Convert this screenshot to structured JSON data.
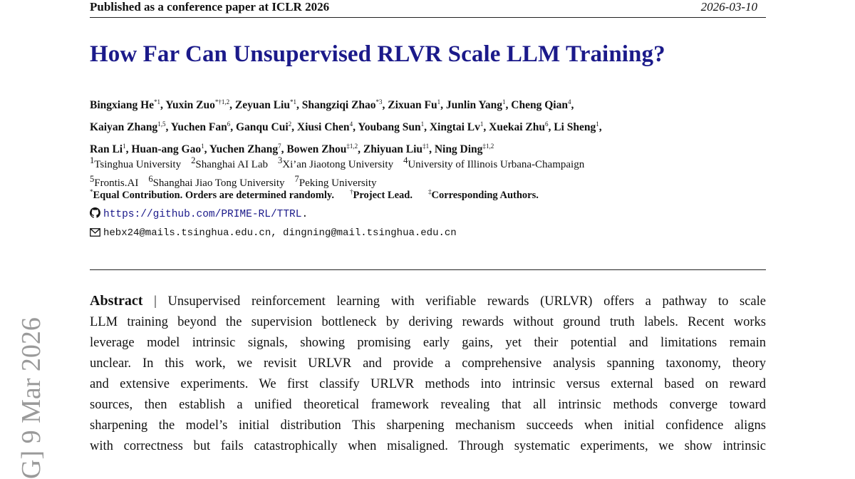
{
  "header": {
    "venue": "Published as a conference paper at ICLR 2026",
    "date": "2026-03-10"
  },
  "title": "How Far Can Unsupervised RLVR Scale LLM Training?",
  "authors": [
    [
      [
        "Bingxiang He",
        "*1"
      ],
      [
        "Yuxin Zuo",
        "*†1,2"
      ],
      [
        "Zeyuan Liu",
        "*1"
      ],
      [
        "Shangziqi Zhao",
        "*3"
      ],
      [
        "Zixuan Fu",
        "1"
      ],
      [
        "Junlin Yang",
        "1"
      ],
      [
        "Cheng Qian",
        "4"
      ]
    ],
    [
      [
        "Kaiyan Zhang",
        "1,5"
      ],
      [
        "Yuchen Fan",
        "6"
      ],
      [
        "Ganqu Cui",
        "2"
      ],
      [
        "Xiusi Chen",
        "4"
      ],
      [
        "Youbang Sun",
        "1"
      ],
      [
        "Xingtai Lv",
        "1"
      ],
      [
        "Xuekai Zhu",
        "6"
      ],
      [
        "Li Sheng",
        "1"
      ]
    ],
    [
      [
        "Ran Li",
        "1"
      ],
      [
        "Huan-ang Gao",
        "1"
      ],
      [
        "Yuchen Zhang",
        "7"
      ],
      [
        "Bowen Zhou",
        "‡1,2"
      ],
      [
        "Zhiyuan Liu",
        "‡1"
      ],
      [
        "Ning Ding",
        "‡1,2"
      ]
    ]
  ],
  "affiliations": [
    [
      [
        "1",
        "Tsinghua University"
      ],
      [
        "2",
        "Shanghai AI Lab"
      ],
      [
        "3",
        "Xi’an Jiaotong University"
      ],
      [
        "4",
        "University of Illinois Urbana-Champaign"
      ]
    ],
    [
      [
        "5",
        "Frontis.AI"
      ],
      [
        "6",
        "Shanghai Jiao Tong University"
      ],
      [
        "7",
        "Peking University"
      ]
    ]
  ],
  "notes": [
    [
      "*",
      "Equal Contribution. Orders are determined randomly."
    ],
    [
      "†",
      "Project Lead."
    ],
    [
      "‡",
      "Corresponding Authors."
    ]
  ],
  "github": {
    "icon": "github-icon",
    "url": "https://github.com/PRIME-RL/TTRL",
    "suffix": "."
  },
  "email": {
    "icon": "envelope-icon",
    "text": "hebx24@mails.tsinghua.edu.cn, dingning@mail.tsinghua.edu.cn"
  },
  "abstract": {
    "heading": "Abstract",
    "lines": [
      "| Unsupervised reinforcement learning with verifiable rewards (URLVR) offers a pathway to scale",
      "LLM training beyond the supervision bottleneck by deriving rewards without ground truth labels. Recent works",
      "leverage model intrinsic signals, showing promising early gains, yet their potential and limitations remain",
      "unclear. In this work, we revisit URLVR and provide a comprehensive analysis spanning taxonomy, theory",
      "and extensive experiments. We first classify URLVR methods into intrinsic versus external based on reward",
      "sources, then establish a unified theoretical framework revealing that all intrinsic methods converge toward",
      "sharpening the model’s initial distribution This sharpening mechanism succeeds when initial confidence aligns",
      "with correctness but fails catastrophically when misaligned. Through systematic experiments, we show intrinsic"
    ]
  },
  "arxiv_stamp": "G]  9 Mar 2026"
}
